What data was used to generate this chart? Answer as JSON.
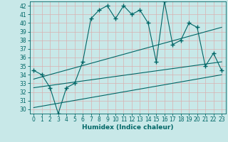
{
  "title": "",
  "xlabel": "Humidex (Indice chaleur)",
  "bg_color": "#c8e8e8",
  "line_color": "#006666",
  "xlim": [
    -0.5,
    23.5
  ],
  "ylim": [
    29.5,
    42.5
  ],
  "yticks": [
    30,
    31,
    32,
    33,
    34,
    35,
    36,
    37,
    38,
    39,
    40,
    41,
    42
  ],
  "xticks": [
    0,
    1,
    2,
    3,
    4,
    5,
    6,
    7,
    8,
    9,
    10,
    11,
    12,
    13,
    14,
    15,
    16,
    17,
    18,
    19,
    20,
    21,
    22,
    23
  ],
  "series1_x": [
    0,
    1,
    2,
    3,
    4,
    5,
    6,
    7,
    8,
    9,
    10,
    11,
    12,
    13,
    14,
    15,
    16,
    17,
    18,
    19,
    20,
    21,
    22,
    23
  ],
  "series1_y": [
    34.5,
    34.0,
    32.5,
    29.5,
    32.5,
    33.0,
    35.5,
    40.5,
    41.5,
    42.0,
    40.5,
    42.0,
    41.0,
    41.5,
    40.0,
    35.5,
    42.5,
    37.5,
    38.0,
    40.0,
    39.5,
    35.0,
    36.5,
    34.5
  ],
  "series2_x": [
    0,
    23
  ],
  "series2_y": [
    33.5,
    39.5
  ],
  "series3_x": [
    0,
    23
  ],
  "series3_y": [
    32.5,
    35.5
  ],
  "series4_x": [
    0,
    23
  ],
  "series4_y": [
    30.2,
    34.0
  ]
}
